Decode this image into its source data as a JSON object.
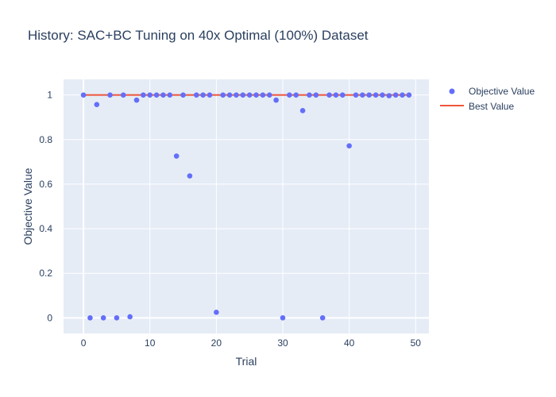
{
  "chart_data": {
    "type": "scatter",
    "title": "History: SAC+BC Tuning on 40x Optimal (100%) Dataset",
    "xlabel": "Trial",
    "ylabel": "Objective Value",
    "xlim": [
      -3,
      52
    ],
    "ylim": [
      -0.07,
      1.07
    ],
    "x_ticks": [
      0,
      10,
      20,
      30,
      40,
      50
    ],
    "y_ticks": [
      0,
      0.2,
      0.4,
      0.6,
      0.8,
      1
    ],
    "grid": true,
    "legend_position": "top-right",
    "background_color": "#e5ecf6",
    "series": [
      {
        "name": "Objective Value",
        "type": "scatter",
        "color": "#636efa",
        "x": [
          0,
          1,
          2,
          3,
          4,
          5,
          6,
          7,
          8,
          9,
          10,
          11,
          12,
          13,
          14,
          15,
          16,
          17,
          18,
          19,
          20,
          21,
          22,
          23,
          24,
          25,
          26,
          27,
          28,
          29,
          30,
          31,
          32,
          33,
          34,
          35,
          36,
          37,
          38,
          39,
          40,
          41,
          42,
          43,
          44,
          45,
          46,
          47,
          48,
          49
        ],
        "y": [
          1.0,
          0.0,
          0.957,
          0.0,
          1.0,
          0.0,
          1.0,
          0.005,
          0.977,
          1.0,
          1.0,
          1.0,
          1.0,
          1.0,
          0.726,
          1.0,
          0.637,
          1.0,
          1.0,
          1.0,
          0.025,
          1.0,
          1.0,
          1.0,
          1.0,
          1.0,
          1.0,
          1.0,
          1.0,
          0.977,
          0.0,
          1.0,
          1.0,
          0.93,
          1.0,
          1.0,
          0.0,
          1.0,
          1.0,
          1.0,
          0.772,
          1.0,
          1.0,
          1.0,
          1.0,
          1.0,
          0.997,
          1.0,
          1.0,
          1.0
        ]
      },
      {
        "name": "Best Value",
        "type": "line",
        "color": "#ef553b",
        "x": [
          0,
          49
        ],
        "y": [
          1.0,
          1.0
        ]
      }
    ]
  }
}
